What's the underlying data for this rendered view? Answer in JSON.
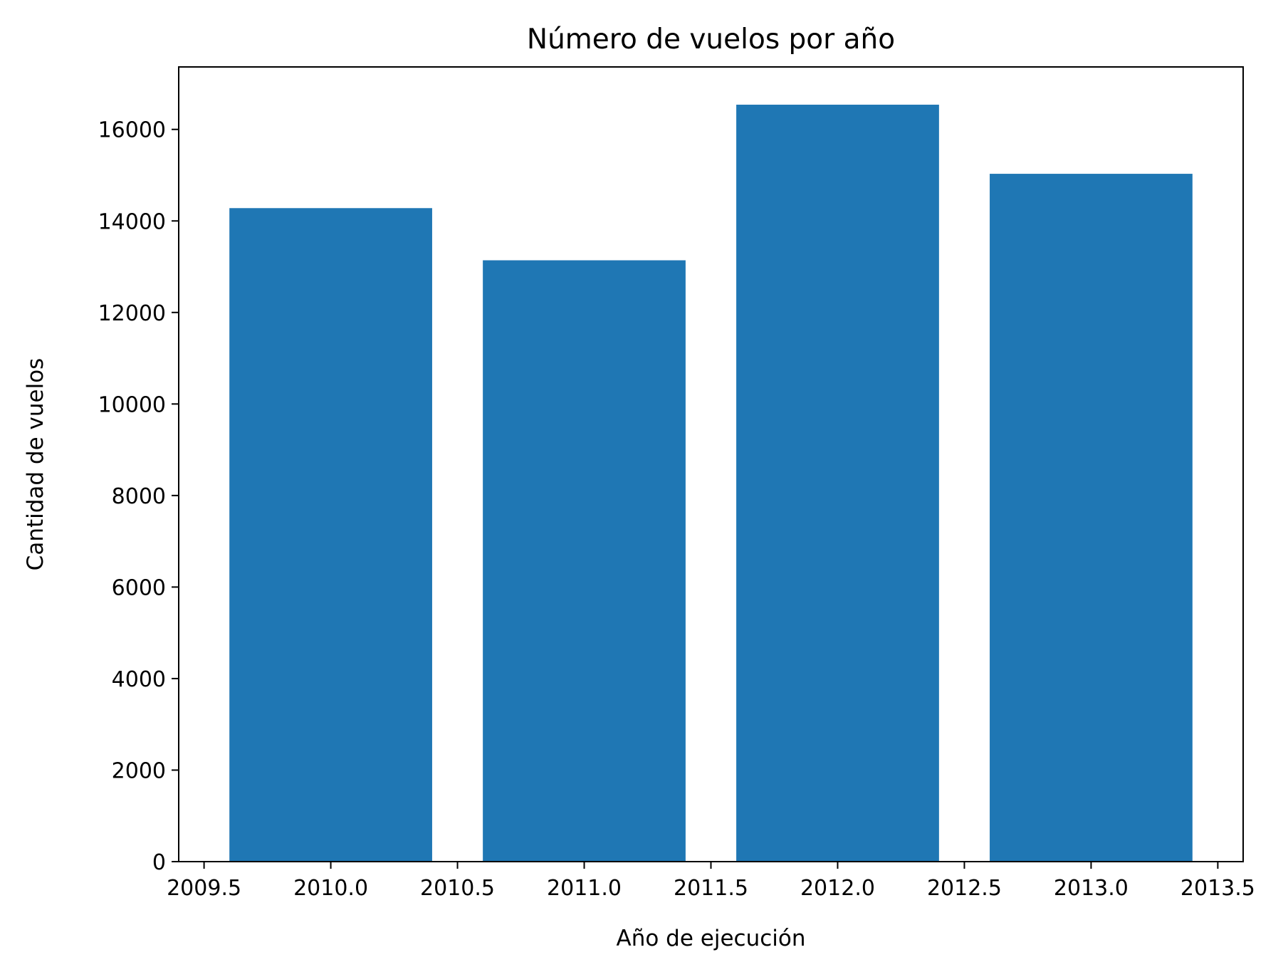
{
  "chart_data": {
    "type": "bar",
    "title": "Número de vuelos por año",
    "xlabel": "Año de ejecución",
    "ylabel": "Cantidad de vuelos",
    "x": [
      2010,
      2011,
      2012,
      2013
    ],
    "values": [
      14280,
      13140,
      16540,
      15030
    ],
    "bar_width": 0.8,
    "xlim": [
      2009.4,
      2013.6
    ],
    "ylim": [
      0,
      17365
    ],
    "xticks": [
      2009.5,
      2010.0,
      2010.5,
      2011.0,
      2011.5,
      2012.0,
      2012.5,
      2013.0,
      2013.5
    ],
    "xtick_labels": [
      "2009.5",
      "2010.0",
      "2010.5",
      "2011.0",
      "2011.5",
      "2012.0",
      "2012.5",
      "2013.0",
      "2013.5"
    ],
    "yticks": [
      0,
      2000,
      4000,
      6000,
      8000,
      10000,
      12000,
      14000,
      16000
    ],
    "ytick_labels": [
      "0",
      "2000",
      "4000",
      "6000",
      "8000",
      "10000",
      "12000",
      "14000",
      "16000"
    ],
    "grid": false,
    "legend": "none",
    "colors": {
      "bar": "#1f77b4",
      "axis": "#000000",
      "background": "#ffffff"
    }
  }
}
